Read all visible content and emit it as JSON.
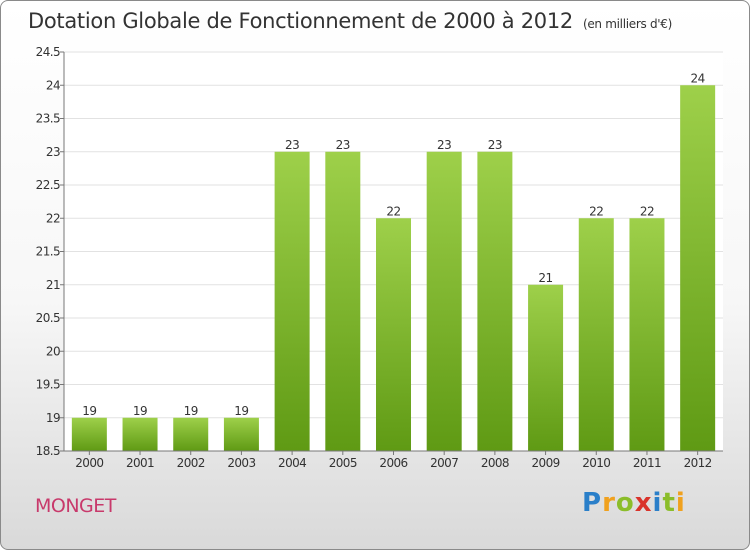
{
  "header": {
    "title": "Dotation Globale de Fonctionnement de 2000 à 2012",
    "unit": "(en milliers d'€)"
  },
  "footer": {
    "commune": "MONGET",
    "logo_letters": [
      "P",
      "r",
      "o",
      "x",
      "i",
      "t",
      "i"
    ],
    "logo_colors": [
      "#2a7fc9",
      "#f0a11e",
      "#8bbd2a",
      "#d9332b",
      "#2a7fc9",
      "#8bbd2a",
      "#f0a11e"
    ]
  },
  "colors": {
    "bar_light": "#9ed04a",
    "bar_dark": "#5f9a14",
    "axis": "#777777",
    "grid": "#e2e2e2"
  },
  "chart_data": {
    "type": "bar",
    "title": "Dotation Globale de Fonctionnement de 2000 à 2012",
    "subtitle": "(en milliers d'€)",
    "xlabel": "",
    "ylabel": "",
    "categories": [
      "2000",
      "2001",
      "2002",
      "2003",
      "2004",
      "2005",
      "2006",
      "2007",
      "2008",
      "2009",
      "2010",
      "2011",
      "2012"
    ],
    "values": [
      19,
      19,
      19,
      19,
      23,
      23,
      22,
      23,
      23,
      21,
      22,
      22,
      24
    ],
    "data_labels": [
      "19",
      "19",
      "19",
      "19",
      "23",
      "23",
      "22",
      "23",
      "23",
      "21",
      "22",
      "22",
      "24"
    ],
    "ylim": [
      18.5,
      24.5
    ],
    "yticks": [
      18.5,
      19,
      19.5,
      20,
      20.5,
      21,
      21.5,
      22,
      22.5,
      23,
      23.5,
      24,
      24.5
    ],
    "ytick_labels": [
      "18.5",
      "19",
      "19.5",
      "20",
      "20.5",
      "21",
      "21.5",
      "22",
      "22.5",
      "23",
      "23.5",
      "24",
      "24.5"
    ],
    "grid": true,
    "legend": "none"
  }
}
